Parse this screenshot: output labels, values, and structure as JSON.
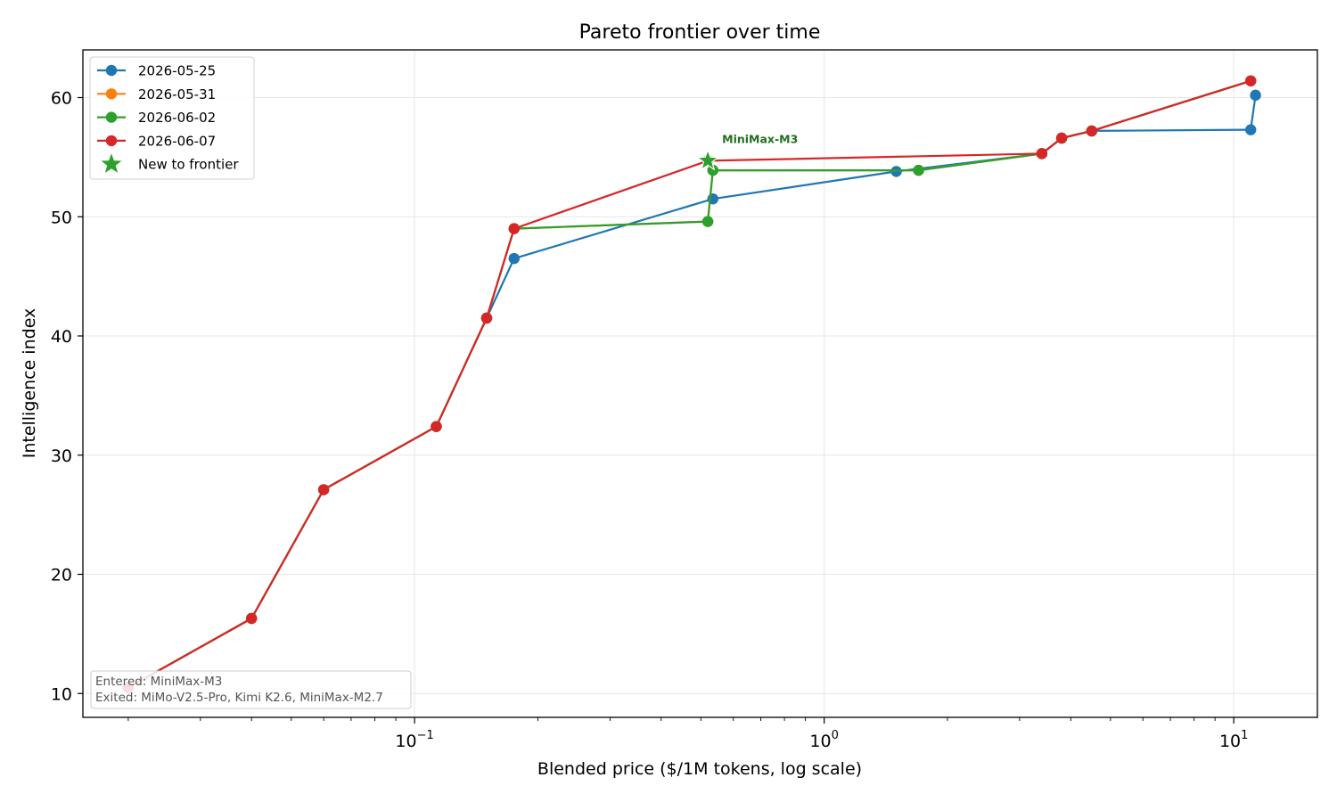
{
  "chart_data": {
    "type": "line",
    "title": "Pareto frontier over time",
    "xlabel": "Blended price ($/1M tokens, log scale)",
    "ylabel": "Intelligence index",
    "xscale": "log",
    "xlim": [
      0.0155,
      16
    ],
    "ylim": [
      8,
      64
    ],
    "xticks": [
      {
        "value": 0.1,
        "base": "10",
        "exp": "−1"
      },
      {
        "value": 1,
        "base": "10",
        "exp": "0"
      },
      {
        "value": 10,
        "base": "10",
        "exp": "1"
      }
    ],
    "yticks": [
      10,
      20,
      30,
      40,
      50,
      60
    ],
    "grid": true,
    "legend_position": "top-left",
    "series": [
      {
        "name": "2026-05-25",
        "color": "#1f77b4",
        "points": [
          [
            0.02,
            10.5
          ],
          [
            0.04,
            16.3
          ],
          [
            0.06,
            27.1
          ],
          [
            0.113,
            32.4
          ],
          [
            0.15,
            41.5
          ],
          [
            0.175,
            46.5
          ],
          [
            0.535,
            51.5
          ],
          [
            1.5,
            53.8
          ],
          [
            3.4,
            55.3
          ],
          [
            3.8,
            56.6
          ],
          [
            4.5,
            57.2
          ],
          [
            11.0,
            57.3
          ],
          [
            11.3,
            60.2
          ]
        ]
      },
      {
        "name": "2026-05-31",
        "color": "#ff7f0e",
        "points": [
          [
            0.02,
            10.5
          ],
          [
            0.04,
            16.3
          ],
          [
            0.06,
            27.1
          ],
          [
            0.113,
            32.4
          ],
          [
            0.15,
            41.5
          ],
          [
            0.175,
            49.0
          ],
          [
            0.52,
            49.6
          ],
          [
            0.535,
            53.9
          ],
          [
            1.7,
            53.9
          ],
          [
            3.4,
            55.3
          ],
          [
            3.8,
            56.6
          ],
          [
            4.5,
            57.2
          ],
          [
            11.0,
            61.4
          ]
        ]
      },
      {
        "name": "2026-06-02",
        "color": "#2ca02c",
        "points": [
          [
            0.02,
            10.5
          ],
          [
            0.04,
            16.3
          ],
          [
            0.06,
            27.1
          ],
          [
            0.113,
            32.4
          ],
          [
            0.15,
            41.5
          ],
          [
            0.175,
            49.0
          ],
          [
            0.52,
            49.6
          ],
          [
            0.535,
            53.9
          ],
          [
            1.7,
            53.9
          ],
          [
            3.4,
            55.3
          ],
          [
            3.8,
            56.6
          ],
          [
            4.5,
            57.2
          ],
          [
            11.0,
            61.4
          ]
        ]
      },
      {
        "name": "2026-06-07",
        "color": "#d62728",
        "points": [
          [
            0.02,
            10.5
          ],
          [
            0.04,
            16.3
          ],
          [
            0.06,
            27.1
          ],
          [
            0.113,
            32.4
          ],
          [
            0.15,
            41.5
          ],
          [
            0.175,
            49.0
          ],
          [
            0.52,
            54.7
          ],
          [
            3.4,
            55.3
          ],
          [
            3.8,
            56.6
          ],
          [
            4.5,
            57.2
          ],
          [
            11.0,
            61.4
          ]
        ]
      }
    ],
    "new_to_frontier": {
      "legend_label": "New to frontier",
      "color": "#2ca02c",
      "points": [
        {
          "x": 0.52,
          "y": 54.7,
          "label": "MiniMax-M3"
        }
      ]
    },
    "annotation_box": {
      "lines": [
        "Entered: MiniMax-M3",
        "Exited: MiMo-V2.5-Pro, Kimi K2.6, MiniMax-M2.7"
      ]
    }
  }
}
